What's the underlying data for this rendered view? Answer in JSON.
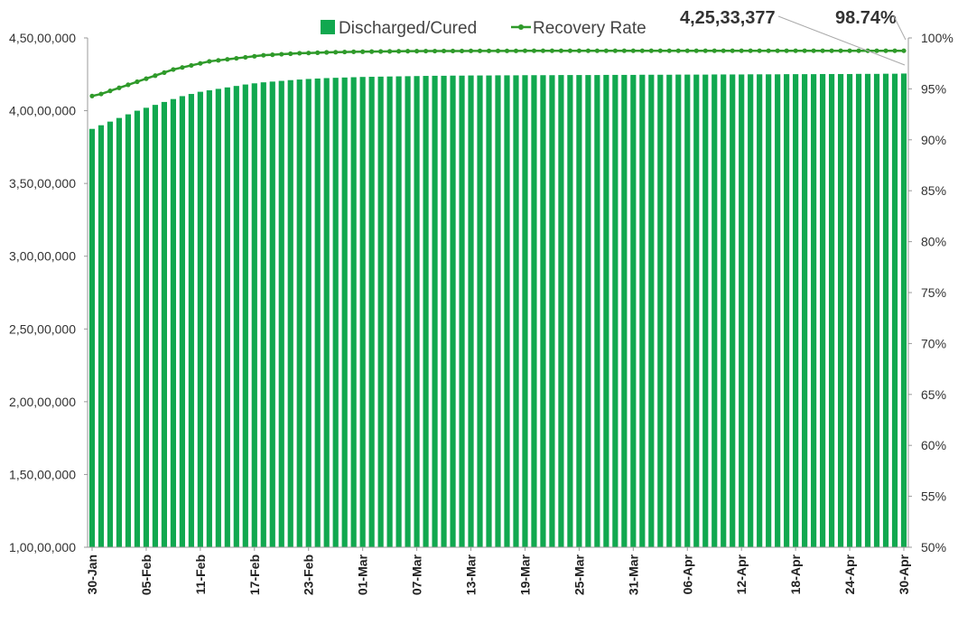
{
  "chart_data": {
    "type": "bar",
    "combo": "bar+line",
    "legend_position": "top",
    "grid": false,
    "legend": [
      {
        "name": "Discharged/Cured",
        "marker": "bar",
        "color": "#11a84f"
      },
      {
        "name": "Recovery Rate",
        "marker": "line",
        "color": "#2f9a2a"
      }
    ],
    "left_axis": {
      "ylim": [
        10000000,
        450000000
      ],
      "ticks": [
        {
          "value": 100000000,
          "label": "1,00,00,000"
        },
        {
          "value": 150000000,
          "label": "1,50,00,000"
        },
        {
          "value": 200000000,
          "label": "2,00,00,000"
        },
        {
          "value": 250000000,
          "label": "2,50,00,000"
        },
        {
          "value": 300000000,
          "label": "3,00,00,000"
        },
        {
          "value": 350000000,
          "label": "3,50,00,000"
        },
        {
          "value": 400000000,
          "label": "4,00,00,000"
        },
        {
          "value": 450000000,
          "label": "4,50,00,000"
        }
      ]
    },
    "right_axis": {
      "ylim": [
        50,
        100
      ],
      "unit": "%",
      "ticks": [
        "50%",
        "55%",
        "60%",
        "65%",
        "70%",
        "75%",
        "80%",
        "85%",
        "90%",
        "95%",
        "100%"
      ]
    },
    "x_tick_labels": [
      "30-Jan",
      "05-Feb",
      "11-Feb",
      "17-Feb",
      "23-Feb",
      "01-Mar",
      "07-Mar",
      "13-Mar",
      "19-Mar",
      "25-Mar",
      "31-Mar",
      "06-Apr",
      "12-Apr",
      "18-Apr",
      "24-Apr",
      "30-Apr"
    ],
    "x": [
      "30-Jan",
      "31-Jan",
      "01-Feb",
      "02-Feb",
      "03-Feb",
      "04-Feb",
      "05-Feb",
      "06-Feb",
      "07-Feb",
      "08-Feb",
      "09-Feb",
      "10-Feb",
      "11-Feb",
      "12-Feb",
      "13-Feb",
      "14-Feb",
      "15-Feb",
      "16-Feb",
      "17-Feb",
      "18-Feb",
      "19-Feb",
      "20-Feb",
      "21-Feb",
      "22-Feb",
      "23-Feb",
      "24-Feb",
      "25-Feb",
      "26-Feb",
      "27-Feb",
      "28-Feb",
      "01-Mar",
      "02-Mar",
      "03-Mar",
      "04-Mar",
      "05-Mar",
      "06-Mar",
      "07-Mar",
      "08-Mar",
      "09-Mar",
      "10-Mar",
      "11-Mar",
      "12-Mar",
      "13-Mar",
      "14-Mar",
      "15-Mar",
      "16-Mar",
      "17-Mar",
      "18-Mar",
      "19-Mar",
      "20-Mar",
      "21-Mar",
      "22-Mar",
      "23-Mar",
      "24-Mar",
      "25-Mar",
      "26-Mar",
      "27-Mar",
      "28-Mar",
      "29-Mar",
      "30-Mar",
      "31-Mar",
      "01-Apr",
      "02-Apr",
      "03-Apr",
      "04-Apr",
      "05-Apr",
      "06-Apr",
      "07-Apr",
      "08-Apr",
      "09-Apr",
      "10-Apr",
      "11-Apr",
      "12-Apr",
      "13-Apr",
      "14-Apr",
      "15-Apr",
      "16-Apr",
      "17-Apr",
      "18-Apr",
      "19-Apr",
      "20-Apr",
      "21-Apr",
      "22-Apr",
      "23-Apr",
      "24-Apr",
      "25-Apr",
      "26-Apr",
      "27-Apr",
      "28-Apr",
      "29-Apr",
      "30-Apr"
    ],
    "series": [
      {
        "name": "Discharged/Cured",
        "type": "bar",
        "axis": "left",
        "color": "#11a84f",
        "values": [
          387500000,
          390000000,
          392500000,
          395000000,
          397500000,
          400000000,
          402000000,
          404000000,
          406000000,
          408000000,
          410000000,
          411500000,
          413000000,
          414000000,
          415000000,
          416000000,
          417000000,
          418000000,
          418800000,
          419500000,
          420000000,
          420500000,
          421000000,
          421400000,
          421800000,
          422100000,
          422400000,
          422600000,
          422800000,
          423000000,
          423200000,
          423300000,
          423400000,
          423500000,
          423600000,
          423700000,
          423800000,
          423900000,
          424000000,
          424000000,
          424100000,
          424100000,
          424200000,
          424200000,
          424200000,
          424300000,
          424300000,
          424300000,
          424400000,
          424400000,
          424400000,
          424400000,
          424500000,
          424500000,
          424500000,
          424500000,
          424500000,
          424600000,
          424600000,
          424600000,
          424600000,
          424700000,
          424700000,
          424700000,
          424700000,
          424800000,
          424800000,
          424800000,
          424800000,
          424900000,
          424900000,
          424900000,
          424900000,
          425000000,
          425000000,
          425000000,
          425000000,
          425100000,
          425100000,
          425100000,
          425100000,
          425200000,
          425200000,
          425200000,
          425200000,
          425300000,
          425300000,
          425300000,
          425400000,
          425400000,
          425533377
        ]
      },
      {
        "name": "Recovery Rate",
        "type": "line",
        "axis": "right",
        "color": "#2f9a2a",
        "values": [
          94.3,
          94.5,
          94.8,
          95.1,
          95.4,
          95.7,
          96.0,
          96.3,
          96.6,
          96.9,
          97.1,
          97.3,
          97.5,
          97.7,
          97.8,
          97.9,
          98.0,
          98.1,
          98.2,
          98.3,
          98.35,
          98.4,
          98.45,
          98.5,
          98.52,
          98.55,
          98.58,
          98.6,
          98.62,
          98.64,
          98.65,
          98.66,
          98.67,
          98.68,
          98.69,
          98.7,
          98.7,
          98.71,
          98.71,
          98.72,
          98.72,
          98.72,
          98.73,
          98.73,
          98.73,
          98.73,
          98.73,
          98.73,
          98.74,
          98.74,
          98.74,
          98.74,
          98.74,
          98.74,
          98.74,
          98.74,
          98.74,
          98.74,
          98.74,
          98.74,
          98.74,
          98.74,
          98.74,
          98.74,
          98.74,
          98.74,
          98.74,
          98.74,
          98.74,
          98.74,
          98.74,
          98.74,
          98.74,
          98.74,
          98.74,
          98.74,
          98.74,
          98.74,
          98.74,
          98.74,
          98.74,
          98.74,
          98.74,
          98.74,
          98.74,
          98.74,
          98.74,
          98.74,
          98.74,
          98.74,
          98.74
        ]
      }
    ],
    "annotations": [
      {
        "text": "4,25,33,377",
        "points_to": "last bar (30-Apr)"
      },
      {
        "text": "98.74%",
        "points_to": "last recovery rate point (30-Apr)"
      }
    ]
  }
}
